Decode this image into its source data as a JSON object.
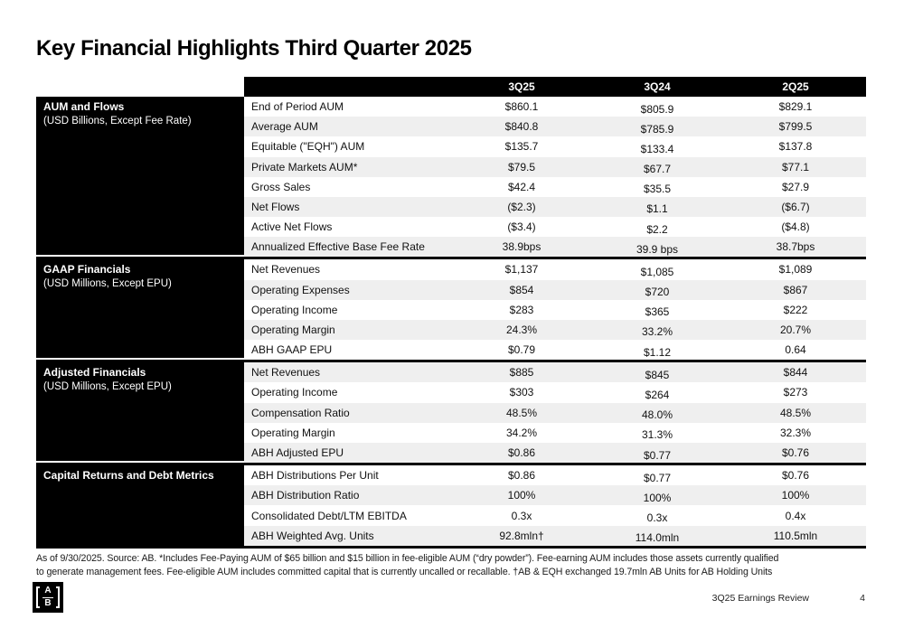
{
  "title": "Key Financial Highlights Third Quarter 2025",
  "table": {
    "columns": [
      "3Q25",
      "3Q24",
      "2Q25"
    ],
    "sections": [
      {
        "header": "AUM and Flows",
        "subheader": "(USD Billions, Except Fee Rate)",
        "rows": [
          {
            "label": "End of Period AUM",
            "values": [
              "$860.1",
              "$805.9",
              "$829.1"
            ]
          },
          {
            "label": "Average AUM",
            "values": [
              "$840.8",
              "$785.9",
              "$799.5"
            ]
          },
          {
            "label": "Equitable (\"EQH\") AUM",
            "values": [
              "$135.7",
              "$133.4",
              "$137.8"
            ]
          },
          {
            "label": "Private Markets AUM*",
            "values": [
              "$79.5",
              "$67.7",
              "$77.1"
            ]
          },
          {
            "label": "Gross Sales",
            "values": [
              "$42.4",
              "$35.5",
              "$27.9"
            ]
          },
          {
            "label": "Net Flows",
            "values": [
              "($2.3)",
              "$1.1",
              "($6.7)"
            ]
          },
          {
            "label": "Active Net Flows",
            "values": [
              "($3.4)",
              "$2.2",
              "($4.8)"
            ]
          },
          {
            "label": "Annualized Effective Base Fee Rate",
            "values": [
              "38.9bps",
              "39.9 bps",
              "38.7bps"
            ]
          }
        ]
      },
      {
        "header": "GAAP Financials",
        "subheader": "(USD Millions, Except EPU)",
        "rows": [
          {
            "label": "Net Revenues",
            "values": [
              "$1,137",
              "$1,085",
              "$1,089"
            ]
          },
          {
            "label": "Operating Expenses",
            "values": [
              "$854",
              "$720",
              "$867"
            ]
          },
          {
            "label": "Operating Income",
            "values": [
              "$283",
              "$365",
              "$222"
            ]
          },
          {
            "label": "Operating Margin",
            "values": [
              "24.3%",
              "33.2%",
              "20.7%"
            ]
          },
          {
            "label": "ABH GAAP EPU",
            "values": [
              "$0.79",
              "$1.12",
              "0.64"
            ]
          }
        ]
      },
      {
        "header": "Adjusted Financials",
        "subheader": "(USD Millions, Except EPU)",
        "rows": [
          {
            "label": "Net Revenues",
            "values": [
              "$885",
              "$845",
              "$844"
            ]
          },
          {
            "label": "Operating Income",
            "values": [
              "$303",
              "$264",
              "$273"
            ]
          },
          {
            "label": "Compensation Ratio",
            "values": [
              "48.5%",
              "48.0%",
              "48.5%"
            ]
          },
          {
            "label": "Operating Margin",
            "values": [
              "34.2%",
              "31.3%",
              "32.3%"
            ]
          },
          {
            "label": "ABH Adjusted EPU",
            "values": [
              "$0.86",
              "$0.77",
              "$0.76"
            ]
          }
        ]
      },
      {
        "header": "Capital Returns and Debt Metrics",
        "subheader": "",
        "rows": [
          {
            "label": "ABH Distributions Per Unit",
            "values": [
              "$0.86",
              "$0.77",
              "$0.76"
            ]
          },
          {
            "label": "ABH Distribution Ratio",
            "values": [
              "100%",
              "100%",
              "100%"
            ]
          },
          {
            "label": "Consolidated Debt/LTM EBITDA",
            "values": [
              "0.3x",
              "0.3x",
              "0.4x"
            ]
          },
          {
            "label": "ABH Weighted Avg. Units",
            "values": [
              "92.8mln†",
              "114.0mln",
              "110.5mln"
            ]
          }
        ]
      }
    ]
  },
  "footnote": {
    "line1": "As of 9/30/2025. Source: AB. *Includes Fee-Paying AUM of $65 billion and $15 billion in fee-eligible AUM (“dry powder”). Fee-earning AUM includes those assets currently qualified",
    "line2": "to generate management fees. Fee-eligible AUM includes committed capital that is currently uncalled or recallable. †AB & EQH exchanged 19.7mln AB Units for AB Holding Units"
  },
  "footer": {
    "logo_top": "A",
    "logo_bottom": "B",
    "label": "3Q25 Earnings Review",
    "page_number": "4"
  },
  "colors": {
    "black": "#000000",
    "stripe": "#efefef",
    "white": "#ffffff"
  }
}
